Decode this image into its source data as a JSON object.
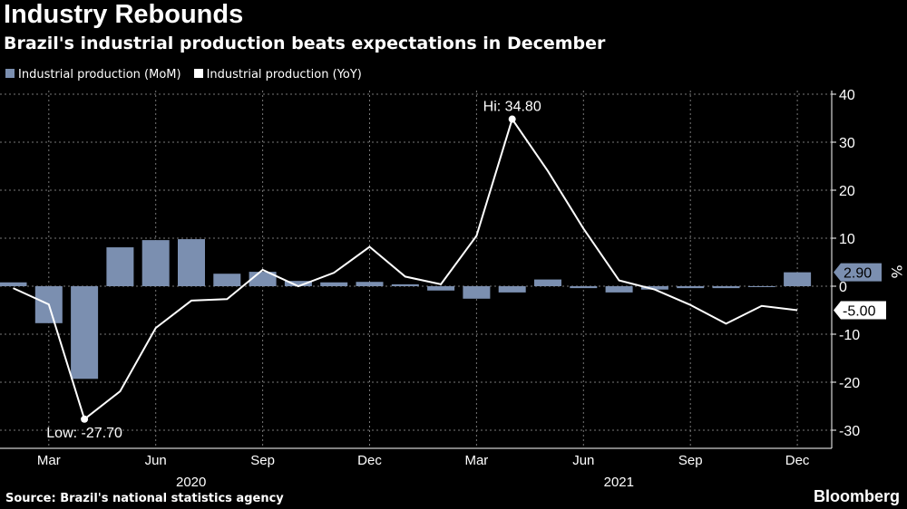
{
  "chart_data": {
    "type": "bar+line",
    "title": "Industry Rebounds",
    "subtitle": "Brazil's industrial production beats expectations in December",
    "categories": [
      "Feb 2020",
      "Mar 2020",
      "Apr 2020",
      "May 2020",
      "Jun 2020",
      "Jul 2020",
      "Aug 2020",
      "Sep 2020",
      "Oct 2020",
      "Nov 2020",
      "Dec 2020",
      "Jan 2021",
      "Feb 2021",
      "Mar 2021",
      "Apr 2021",
      "May 2021",
      "Jun 2021",
      "Jul 2021",
      "Aug 2021",
      "Sep 2021",
      "Oct 2021",
      "Nov 2021",
      "Dec 2021"
    ],
    "series": [
      {
        "name": "Industrial production (MoM)",
        "type": "bar",
        "color": "#7b8fb0",
        "values": [
          0.8,
          -7.7,
          -19.3,
          8.1,
          9.6,
          9.8,
          2.6,
          3.0,
          1.1,
          0.8,
          0.9,
          0.4,
          -0.9,
          -2.6,
          -1.3,
          1.4,
          -0.4,
          -1.3,
          -0.7,
          -0.4,
          -0.4,
          -0.1,
          2.9
        ]
      },
      {
        "name": "Industrial production (YoY)",
        "type": "line",
        "color": "#ffffff",
        "values": [
          -0.4,
          -3.8,
          -27.7,
          -21.9,
          -8.7,
          -3.0,
          -2.7,
          3.4,
          0.0,
          2.8,
          8.2,
          2.0,
          0.4,
          10.5,
          34.8,
          24.0,
          12.0,
          1.2,
          -0.7,
          -3.9,
          -7.8,
          -4.1,
          -5.0
        ]
      }
    ],
    "x_tick_labels": [
      {
        "label": "Mar",
        "index": 1
      },
      {
        "label": "Jun",
        "index": 4
      },
      {
        "label": "Sep",
        "index": 7
      },
      {
        "label": "Dec",
        "index": 10
      },
      {
        "label": "Mar",
        "index": 13
      },
      {
        "label": "Jun",
        "index": 16
      },
      {
        "label": "Sep",
        "index": 19
      },
      {
        "label": "Dec",
        "index": 22
      }
    ],
    "year_labels": [
      {
        "label": "2020",
        "index": 4
      },
      {
        "label": "2021",
        "index": 16
      }
    ],
    "y_ticks": [
      40,
      30,
      20,
      10,
      0,
      -10,
      -20,
      -30
    ],
    "ylim": [
      -33.5,
      42
    ],
    "ylabel": "%",
    "grid": true,
    "legend": "top-left",
    "annotations": {
      "high": "Hi: 34.80",
      "low": "Low: -27.70",
      "last_mom": "2.90",
      "last_yoy": "-5.00"
    }
  },
  "source": "Source: Brazil's national statistics agency",
  "brand": "Bloomberg"
}
